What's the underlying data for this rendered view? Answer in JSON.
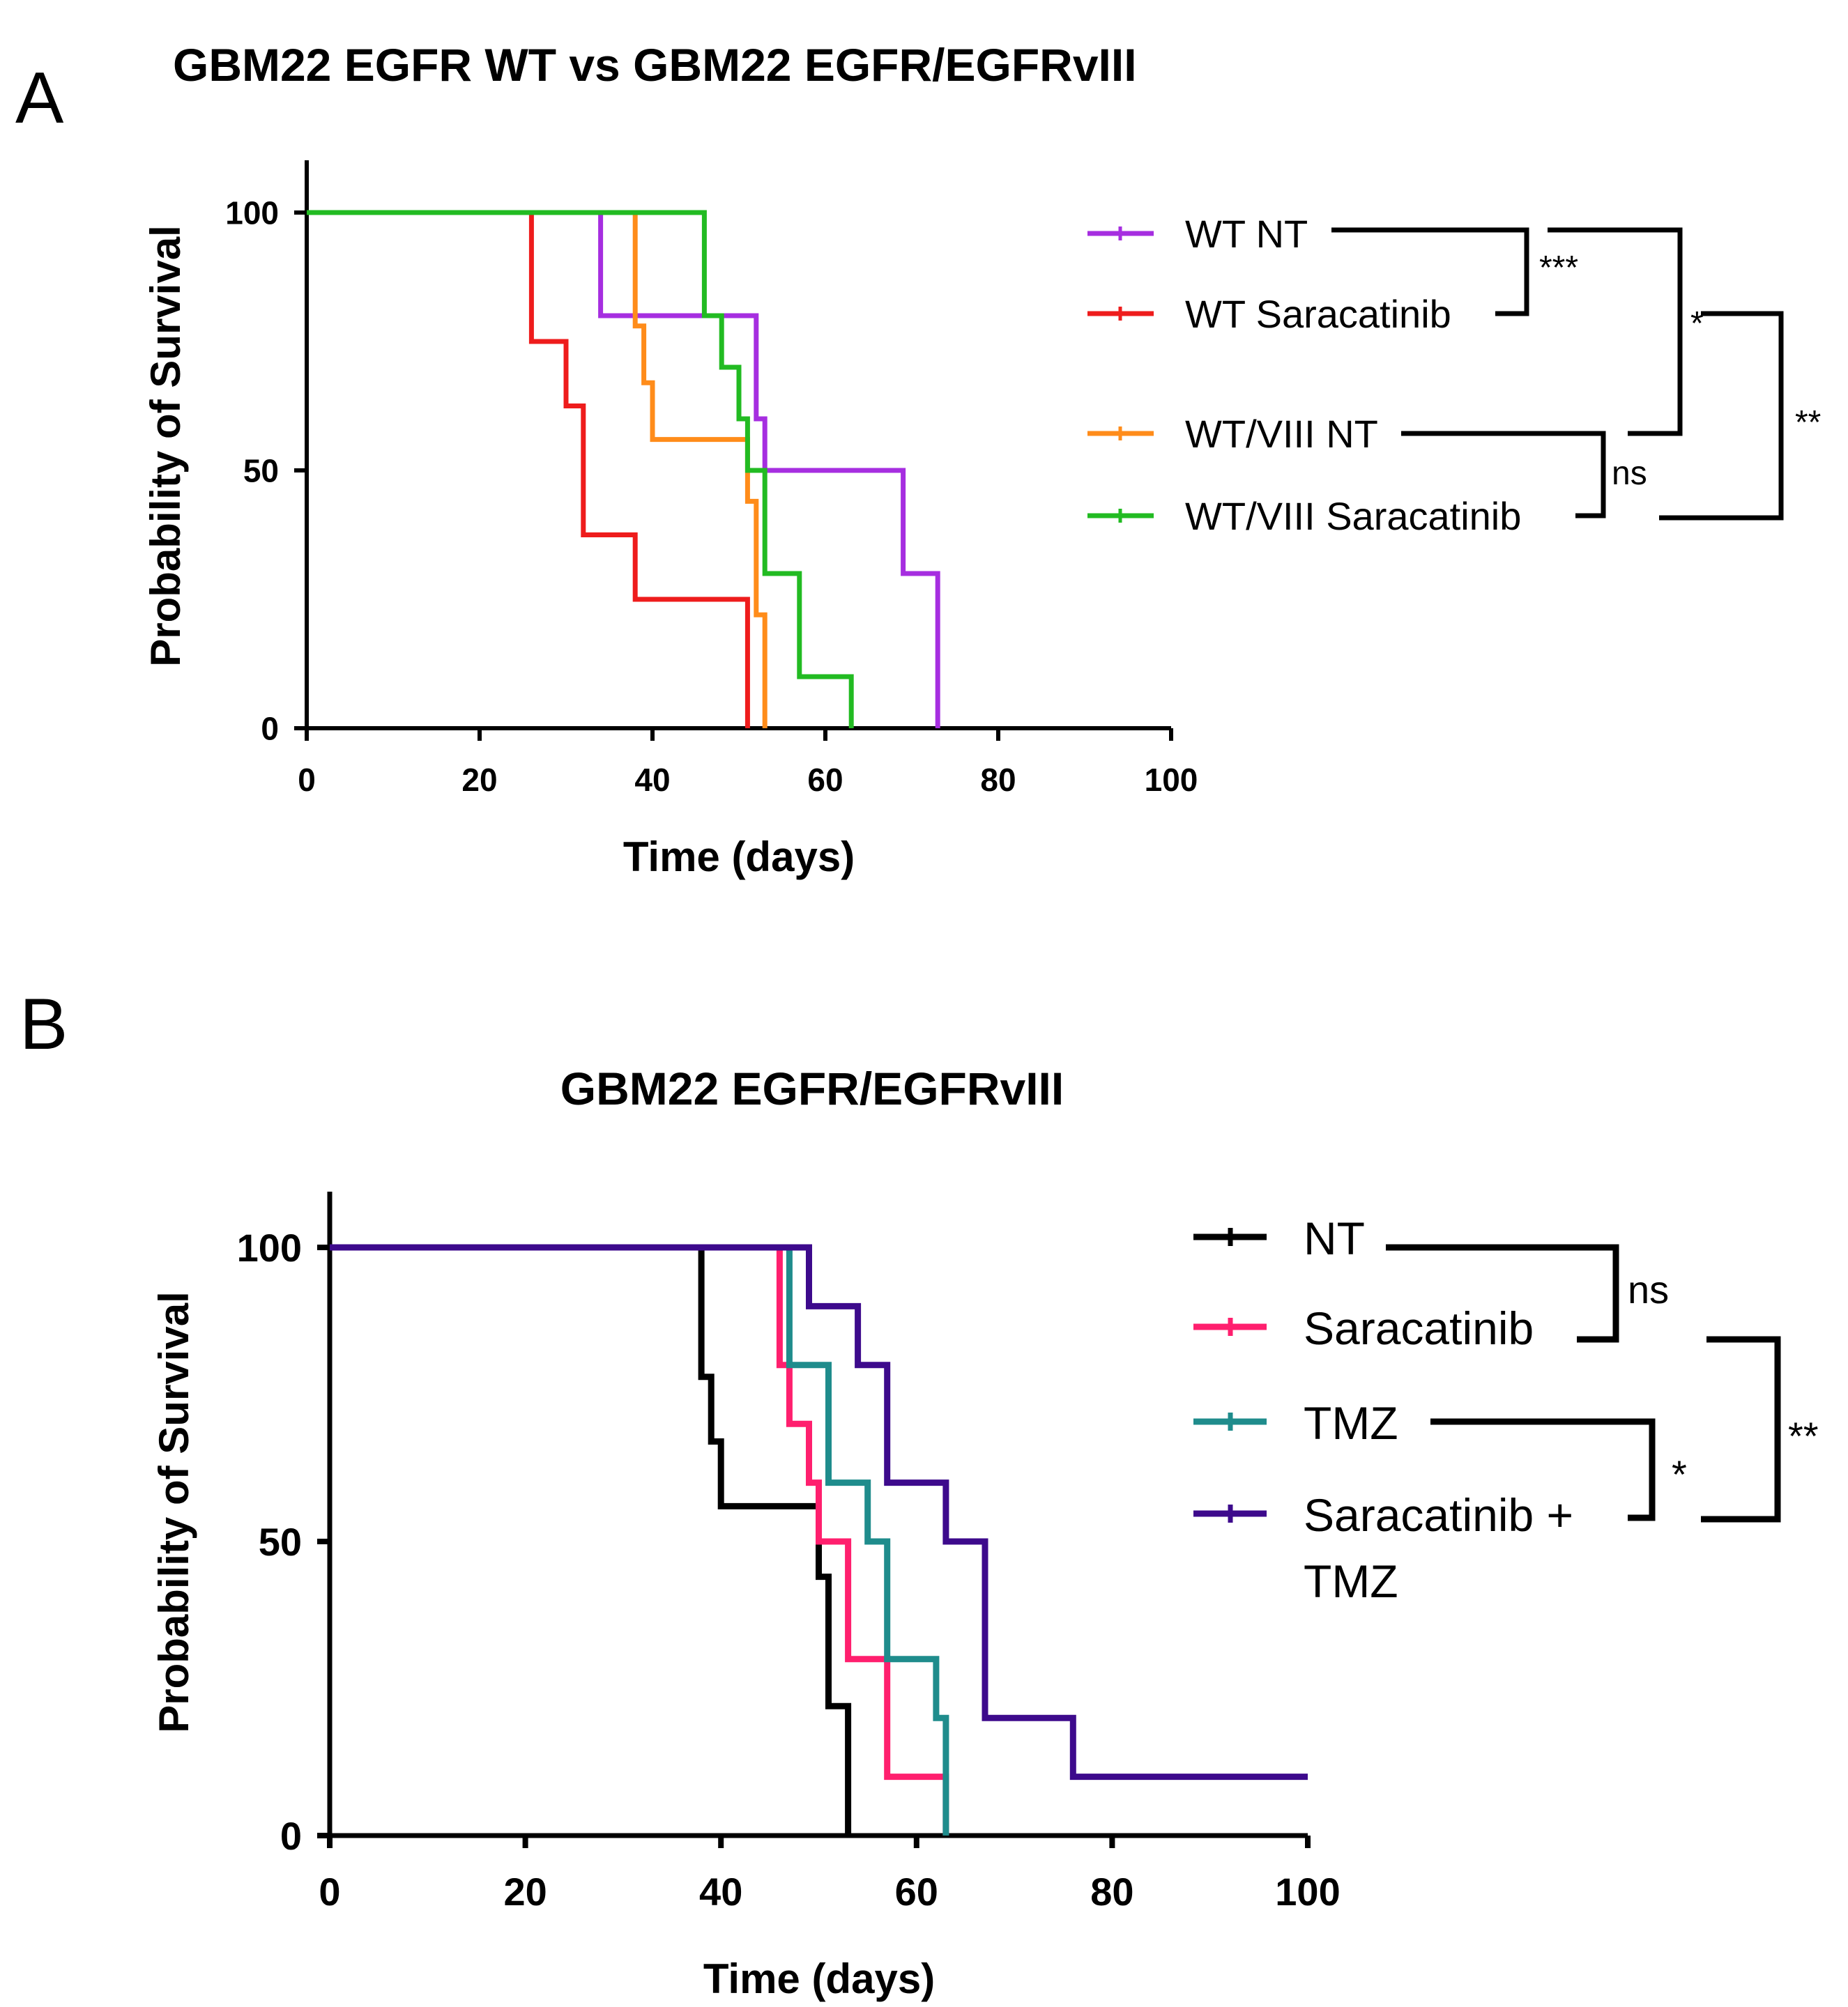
{
  "colors": {
    "wt_nt": "#a62ee0",
    "wt_saracatinib": "#ee1c1c",
    "wtviii_nt": "#ff8c1a",
    "wtviii_saracatinib": "#22bb22",
    "nt": "#000000",
    "saracatinib": "#ff1f6e",
    "tmz": "#1f8c8c",
    "saracatinib_tmz": "#3d0a8c"
  },
  "chart_data": [
    {
      "panel": "A",
      "type": "line",
      "step": true,
      "title": "GBM22 EGFR WT vs GBM22 EGFR/EGFRvIII",
      "xlabel": "Time (days)",
      "ylabel": "Probability of Survival",
      "xlim": [
        0,
        100
      ],
      "ylim": [
        0,
        110
      ],
      "xticks": [
        0,
        20,
        40,
        60,
        80,
        100
      ],
      "yticks": [
        0,
        50,
        100
      ],
      "series": [
        {
          "name": "WT NT",
          "color_key": "wt_nt",
          "x": [
            0,
            34,
            52,
            53,
            69,
            73
          ],
          "y": [
            100,
            80,
            60,
            50,
            30,
            0
          ]
        },
        {
          "name": "WT Saracatinib",
          "color_key": "wt_saracatinib",
          "x": [
            0,
            26,
            30,
            32,
            38,
            51
          ],
          "y": [
            100,
            75,
            62.5,
            37.5,
            25,
            0
          ]
        },
        {
          "name": "WT/VIII NT",
          "color_key": "wtviii_nt",
          "x": [
            0,
            38,
            39,
            40,
            51,
            52,
            53
          ],
          "y": [
            100,
            78,
            67,
            56,
            44,
            22,
            0
          ]
        },
        {
          "name": "WT/VIII Saracatinib",
          "color_key": "wtviii_saracatinib",
          "x": [
            0,
            46,
            48,
            50,
            51,
            53,
            57,
            63
          ],
          "y": [
            100,
            80,
            70,
            60,
            50,
            30,
            10,
            0
          ]
        }
      ],
      "significance": [
        {
          "groups": [
            "WT NT",
            "WT Saracatinib"
          ],
          "label": "***"
        },
        {
          "groups": [
            "WT NT",
            "WT/VIII NT"
          ],
          "label": "*"
        },
        {
          "groups": [
            "WT/VIII NT",
            "WT/VIII Saracatinib"
          ],
          "label": "ns"
        },
        {
          "groups": [
            "WT Saracatinib",
            "WT/VIII Saracatinib"
          ],
          "label": "**"
        }
      ]
    },
    {
      "panel": "B",
      "type": "line",
      "step": true,
      "title": "GBM22 EGFR/EGFRvIII",
      "xlabel": "Time (days)",
      "ylabel": "Probability of Survival",
      "xlim": [
        0,
        100
      ],
      "ylim": [
        0,
        110
      ],
      "xticks": [
        0,
        20,
        40,
        60,
        80,
        100
      ],
      "yticks": [
        0,
        50,
        100
      ],
      "series": [
        {
          "name": "NT",
          "color_key": "nt",
          "x": [
            0,
            38,
            39,
            40,
            50,
            51,
            53
          ],
          "y": [
            100,
            78,
            67,
            56,
            44,
            22,
            0
          ]
        },
        {
          "name": "Saracatinib",
          "color_key": "saracatinib",
          "x": [
            0,
            46,
            47,
            49,
            50,
            53,
            57,
            63
          ],
          "y": [
            100,
            80,
            70,
            60,
            50,
            30,
            10,
            0
          ]
        },
        {
          "name": "TMZ",
          "color_key": "tmz",
          "x": [
            0,
            47,
            51,
            55,
            57,
            62,
            63
          ],
          "y": [
            100,
            80,
            60,
            50,
            30,
            20,
            0
          ]
        },
        {
          "name": "Saracatinib + TMZ",
          "color_key": "saracatinib_tmz",
          "x": [
            0,
            49,
            54,
            57,
            63,
            67,
            76,
            100
          ],
          "y": [
            100,
            90,
            80,
            60,
            50,
            20,
            10,
            10
          ]
        }
      ],
      "significance": [
        {
          "groups": [
            "NT",
            "Saracatinib"
          ],
          "label": "ns"
        },
        {
          "groups": [
            "TMZ",
            "Saracatinib + TMZ"
          ],
          "label": "*"
        },
        {
          "groups": [
            "Saracatinib",
            "Saracatinib + TMZ"
          ],
          "label": "**"
        }
      ]
    }
  ],
  "panelA": {
    "letter": "A",
    "legend": [
      {
        "label": "WT NT"
      },
      {
        "label": "WT Saracatinib"
      },
      {
        "label": "WT/VIII NT"
      },
      {
        "label": "WT/VIII Saracatinib"
      }
    ],
    "sig": {
      "s1": "***",
      "s2": "*",
      "s3": "ns",
      "s4": "**"
    }
  },
  "panelB": {
    "letter": "B",
    "legend": [
      {
        "label": "NT"
      },
      {
        "label": "Saracatinib"
      },
      {
        "label": "TMZ"
      },
      {
        "label": "Saracatinib +",
        "label2": "TMZ"
      }
    ],
    "sig": {
      "s1": "ns",
      "s2": "*",
      "s3": "**"
    }
  }
}
